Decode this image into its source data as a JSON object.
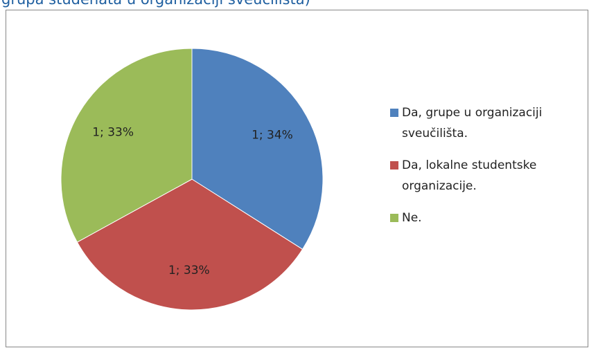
{
  "chart_data": {
    "type": "pie",
    "title": "grupa studenata u organizaciji sveučilišta)",
    "categories": [
      "Da, grupe u organizaciji sveučilišta.",
      "Da, lokalne studentske organizacije.",
      "Ne."
    ],
    "values": [
      34,
      33,
      33
    ],
    "value_labels": [
      "1; 34%",
      "1; 33%",
      "1; 33%"
    ],
    "colors": [
      "#4f81bd",
      "#c0504d",
      "#9bbb59"
    ],
    "legend": "right"
  }
}
